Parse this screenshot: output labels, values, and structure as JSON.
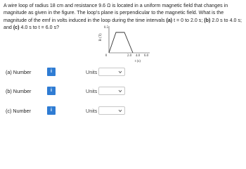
{
  "question": [
    "A wire loop of radius 18 cm and resistance 9.6 Ω is located in a uniform magnetic field that changes in magnitude as given in the figure. The loop's plane is perpendicular to the magnetic field. What is the magnitude of the emf in volts induced in the loop during the time intervals ",
    "(a)",
    " t = 0 to 2.0 s; ",
    "(b)",
    " 2.0 s to 4.0 s; and ",
    "(c)",
    " 4.0 s to t = 6.0 s?"
  ],
  "figure": {
    "y_label": "B (T)",
    "y_tick": "0.5",
    "x_ticks": [
      "0",
      "2.0",
      "4.0",
      "6.0"
    ],
    "x_label": "t (s)"
  },
  "answers": [
    {
      "label": "(a) Number",
      "info": "i",
      "units": "Units"
    },
    {
      "label": "(b) Number",
      "info": "i",
      "units": "Units"
    },
    {
      "label": "(c) Number",
      "info": "i",
      "units": "Units"
    }
  ]
}
